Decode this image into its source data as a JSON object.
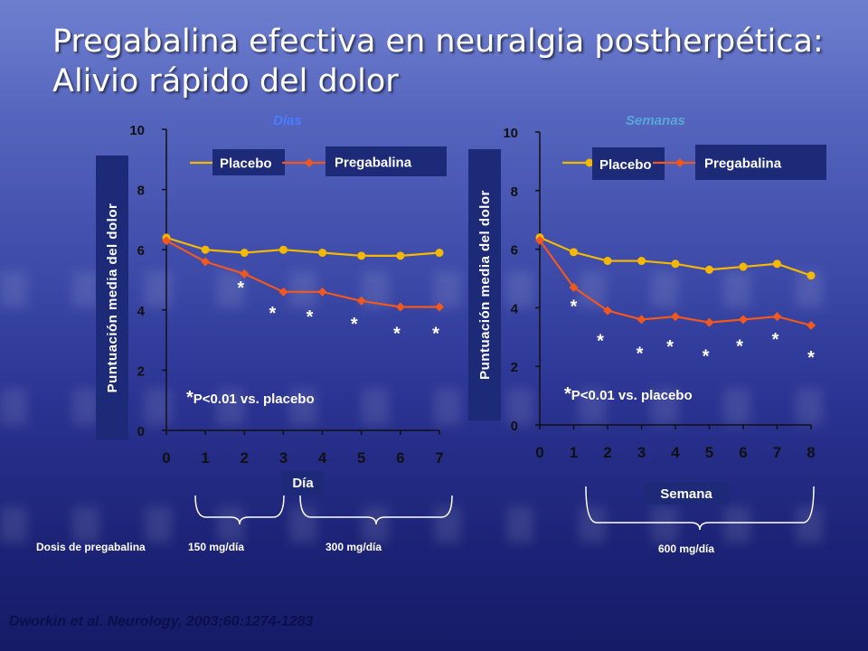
{
  "title_line1": "Pregabalina efectiva en neuralgia postherpética:",
  "title_line2": "Alivio rápido del dolor",
  "footer": "Dworkin et al. Neurology, 2003;60:1274-1283",
  "dosing": {
    "label": "Dosis de pregabalina",
    "dose1": "150 mg/día",
    "dose2": "300 mg/día",
    "dose3": "600 mg/día"
  },
  "colors": {
    "placebo": "#f5b800",
    "pregabalina": "#f0581e",
    "label_box": "#1c2a78",
    "axis": "#111111"
  },
  "chart_data": [
    {
      "type": "line",
      "title": "Días",
      "xlabel": "Día",
      "ylabel": "Puntuación media del dolor",
      "x": [
        0,
        1,
        2,
        3,
        4,
        5,
        6,
        7
      ],
      "xlim": [
        0,
        7
      ],
      "ylim": [
        0,
        10
      ],
      "yticks": [
        0,
        2,
        4,
        6,
        8,
        10
      ],
      "series": [
        {
          "name": "Placebo",
          "values": [
            6.4,
            6.0,
            5.9,
            6.0,
            5.9,
            5.8,
            5.8,
            5.9
          ]
        },
        {
          "name": "Pregabalina",
          "values": [
            6.3,
            5.6,
            5.2,
            4.6,
            4.6,
            4.3,
            4.1,
            4.1
          ]
        }
      ],
      "asterisks_at_x": [
        2,
        3,
        4,
        5,
        6,
        7
      ],
      "asterisk_symbol": "*",
      "annotation": "P<0.01 vs. placebo",
      "legend": "top"
    },
    {
      "type": "line",
      "title": "Semanas",
      "xlabel": "Semana",
      "ylabel": "Puntuación media del dolor",
      "x": [
        0,
        1,
        2,
        3,
        4,
        5,
        6,
        7,
        8
      ],
      "xlim": [
        0,
        8
      ],
      "ylim": [
        0,
        10
      ],
      "yticks": [
        0,
        2,
        4,
        6,
        8,
        10
      ],
      "series": [
        {
          "name": "Placebo",
          "values": [
            6.4,
            5.9,
            5.6,
            5.6,
            5.5,
            5.3,
            5.4,
            5.5,
            5.1
          ]
        },
        {
          "name": "Pregabalina",
          "values": [
            6.3,
            4.7,
            3.9,
            3.6,
            3.7,
            3.5,
            3.6,
            3.7,
            3.4
          ]
        }
      ],
      "asterisks_at_x": [
        1,
        2,
        3,
        4,
        5,
        6,
        7,
        8
      ],
      "asterisk_symbol": "*",
      "annotation": "P<0.01 vs. placebo",
      "legend": "top"
    }
  ]
}
